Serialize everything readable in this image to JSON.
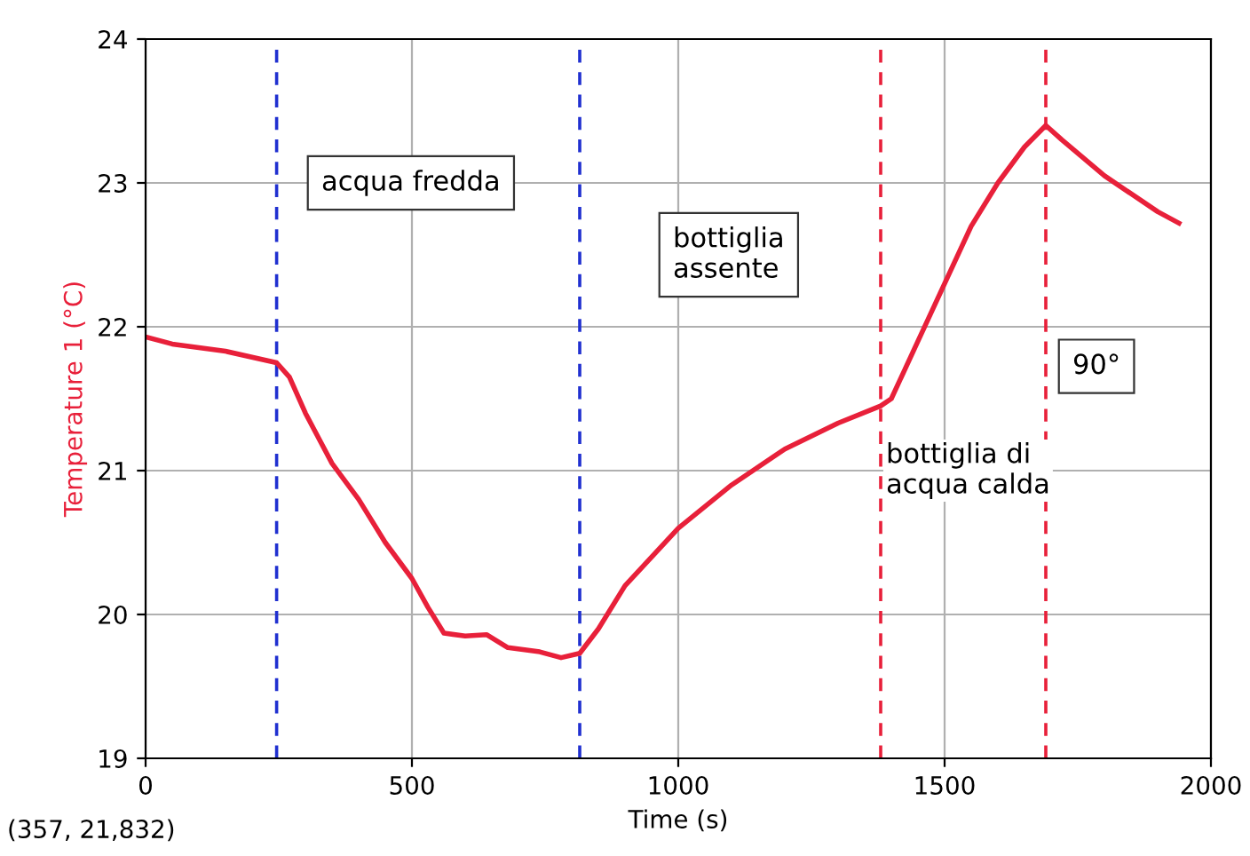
{
  "chart_data": {
    "type": "line",
    "xlabel": "Time (s)",
    "ylabel": "Temperature 1 (°C)",
    "x": [
      0,
      50,
      150,
      246,
      270,
      300,
      350,
      400,
      450,
      500,
      530,
      560,
      600,
      640,
      680,
      740,
      780,
      815,
      850,
      900,
      1000,
      1100,
      1200,
      1300,
      1380,
      1400,
      1450,
      1500,
      1550,
      1600,
      1650,
      1690,
      1720,
      1800,
      1900,
      1940
    ],
    "series": [
      {
        "color": "#e8203a",
        "values": [
          21.93,
          21.88,
          21.83,
          21.75,
          21.65,
          21.4,
          21.05,
          20.8,
          20.5,
          20.25,
          20.05,
          19.87,
          19.85,
          19.86,
          19.77,
          19.74,
          19.7,
          19.73,
          19.9,
          20.2,
          20.6,
          20.9,
          21.15,
          21.33,
          21.45,
          21.5,
          21.9,
          22.3,
          22.7,
          23.0,
          23.25,
          23.4,
          23.3,
          23.05,
          22.8,
          22.72
        ]
      }
    ],
    "xlim": [
      0,
      2000
    ],
    "ylim": [
      19,
      24
    ],
    "xticks": [
      0,
      500,
      1000,
      1500,
      2000
    ],
    "yticks": [
      19,
      20,
      21,
      22,
      23,
      24
    ],
    "grid": true,
    "marker": "none",
    "line_style": "solid",
    "ref_lines": [
      {
        "axis": "x",
        "value": 246,
        "color": "#2030d0",
        "line_style": "dashed"
      },
      {
        "axis": "x",
        "value": 815,
        "color": "#2030d0",
        "line_style": "dashed"
      },
      {
        "axis": "x",
        "value": 1380,
        "color": "#e8203a",
        "line_style": "dashed"
      },
      {
        "axis": "x",
        "value": 1690,
        "color": "#e8203a",
        "line_style": "dashed"
      }
    ],
    "annotations": [
      "acqua fredda",
      "bottiglia\nassente",
      "bottiglia di\nacqua calda",
      "90°",
      "(357, 21,832)"
    ]
  }
}
